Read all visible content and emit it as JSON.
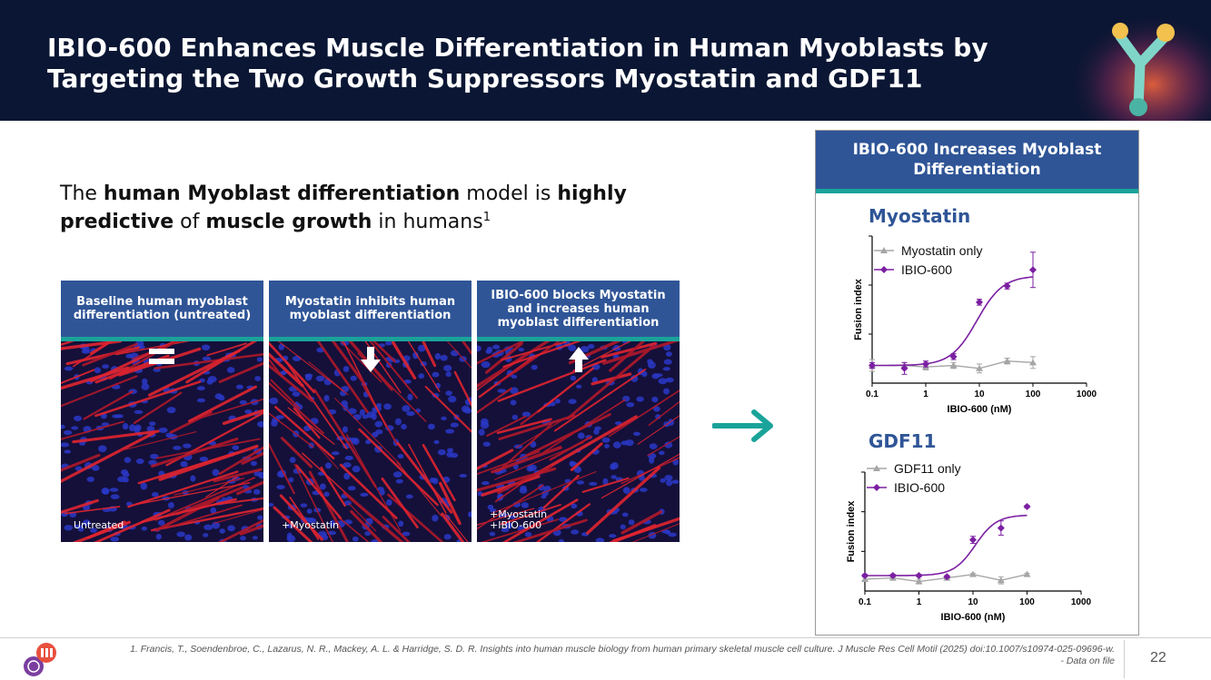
{
  "header": {
    "title": "IBIO-600 Enhances Muscle Differentiation in Human Myoblasts by Targeting the Two Growth Suppressors Myostatin and GDF11"
  },
  "intro": {
    "t1": "The ",
    "b1": "human Myoblast differentiation",
    "t2": " model is ",
    "b2": "highly predictive",
    "t3": " of ",
    "b3": "muscle growth",
    "t4": " in humans",
    "sup": "1"
  },
  "panels": [
    {
      "header": "Baseline human myoblast differentiation (untreated)",
      "label": "Untreated",
      "symbol": "equals-icon"
    },
    {
      "header": "Myostatin inhibits human myoblast differentiation",
      "label": "+Myostatin",
      "symbol": "arrow-down-icon"
    },
    {
      "header": "IBIO-600 blocks Myostatin and increases human myoblast differentiation",
      "label": "+Myostatin +IBIO-600",
      "symbol": "arrow-up-icon"
    }
  ],
  "right_box": {
    "header": "IBIO-600 Increases Myoblast Differentiation"
  },
  "colors": {
    "navy": "#0a1633",
    "panel_blue": "#2f5597",
    "teal": "#1aa39a",
    "purple": "#7b1fa2",
    "gray": "#a6a6a6"
  },
  "chart_data": [
    {
      "type": "line",
      "title": "Myostatin",
      "xlabel": "IBIO-600 (nM)",
      "ylabel": "Fusion index",
      "xscale": "log",
      "xlim": [
        0.1,
        1000
      ],
      "xticks": [
        "0.1",
        "1",
        "10",
        "100",
        "1000"
      ],
      "ylim": [
        0,
        1
      ],
      "legend": "top-left",
      "series": [
        {
          "name": "Myostatin only",
          "marker": "triangle",
          "color": "#a6a6a6",
          "x": [
            0.1,
            0.4,
            1,
            3.3,
            10,
            33,
            100
          ],
          "y": [
            0.12,
            0.12,
            0.11,
            0.12,
            0.1,
            0.15,
            0.14
          ],
          "err": [
            0.04,
            0.02,
            0.02,
            0.02,
            0.03,
            0.02,
            0.04
          ]
        },
        {
          "name": "IBIO-600",
          "marker": "diamond",
          "color": "#7b1fa2",
          "fit": "sigmoid",
          "x": [
            0.1,
            0.4,
            1,
            3.3,
            10,
            33,
            100
          ],
          "y": [
            0.12,
            0.1,
            0.13,
            0.18,
            0.55,
            0.66,
            0.77
          ],
          "err": [
            0.02,
            0.04,
            0.02,
            0.02,
            0.02,
            0.02,
            0.12
          ],
          "curve": {
            "bottom": 0.12,
            "top": 0.73,
            "ec50": 9,
            "hill": 1.8
          }
        }
      ]
    },
    {
      "type": "line",
      "title": "GDF11",
      "xlabel": "IBIO-600 (nM)",
      "ylabel": "Fusion index",
      "xscale": "log",
      "xlim": [
        0.1,
        1000
      ],
      "xticks": [
        "0.1",
        "1",
        "10",
        "100",
        "1000"
      ],
      "ylim": [
        0,
        1
      ],
      "legend": "top-left",
      "series": [
        {
          "name": "GDF11 only",
          "marker": "triangle",
          "color": "#a6a6a6",
          "x": [
            0.1,
            0.33,
            1,
            3.3,
            10,
            33,
            100
          ],
          "y": [
            0.1,
            0.11,
            0.08,
            0.11,
            0.14,
            0.09,
            0.14
          ],
          "err": [
            0.02,
            0.01,
            0.02,
            0.01,
            0.01,
            0.03,
            0.01
          ]
        },
        {
          "name": "IBIO-600",
          "marker": "diamond",
          "color": "#7b1fa2",
          "fit": "sigmoid",
          "x": [
            0.1,
            0.33,
            1,
            3.3,
            10,
            33,
            100
          ],
          "y": [
            0.13,
            0.13,
            0.13,
            0.12,
            0.43,
            0.53,
            0.71
          ],
          "err": [
            0.01,
            0.01,
            0.01,
            0.01,
            0.03,
            0.06,
            0.01
          ],
          "curve": {
            "bottom": 0.13,
            "top": 0.64,
            "ec50": 11,
            "hill": 2.2
          }
        }
      ]
    }
  ],
  "footer": {
    "reference": "1. Francis, T., Soendenbroe, C., Lazarus, N. R., Mackey, A. L. & Harridge, S. D. R. Insights into human muscle biology from human primary skeletal muscle cell culture. J Muscle Res Cell Motil (2025) doi:10.1007/s10974-025-09696-w.",
    "note": "- Data on file",
    "page_number": "22"
  }
}
